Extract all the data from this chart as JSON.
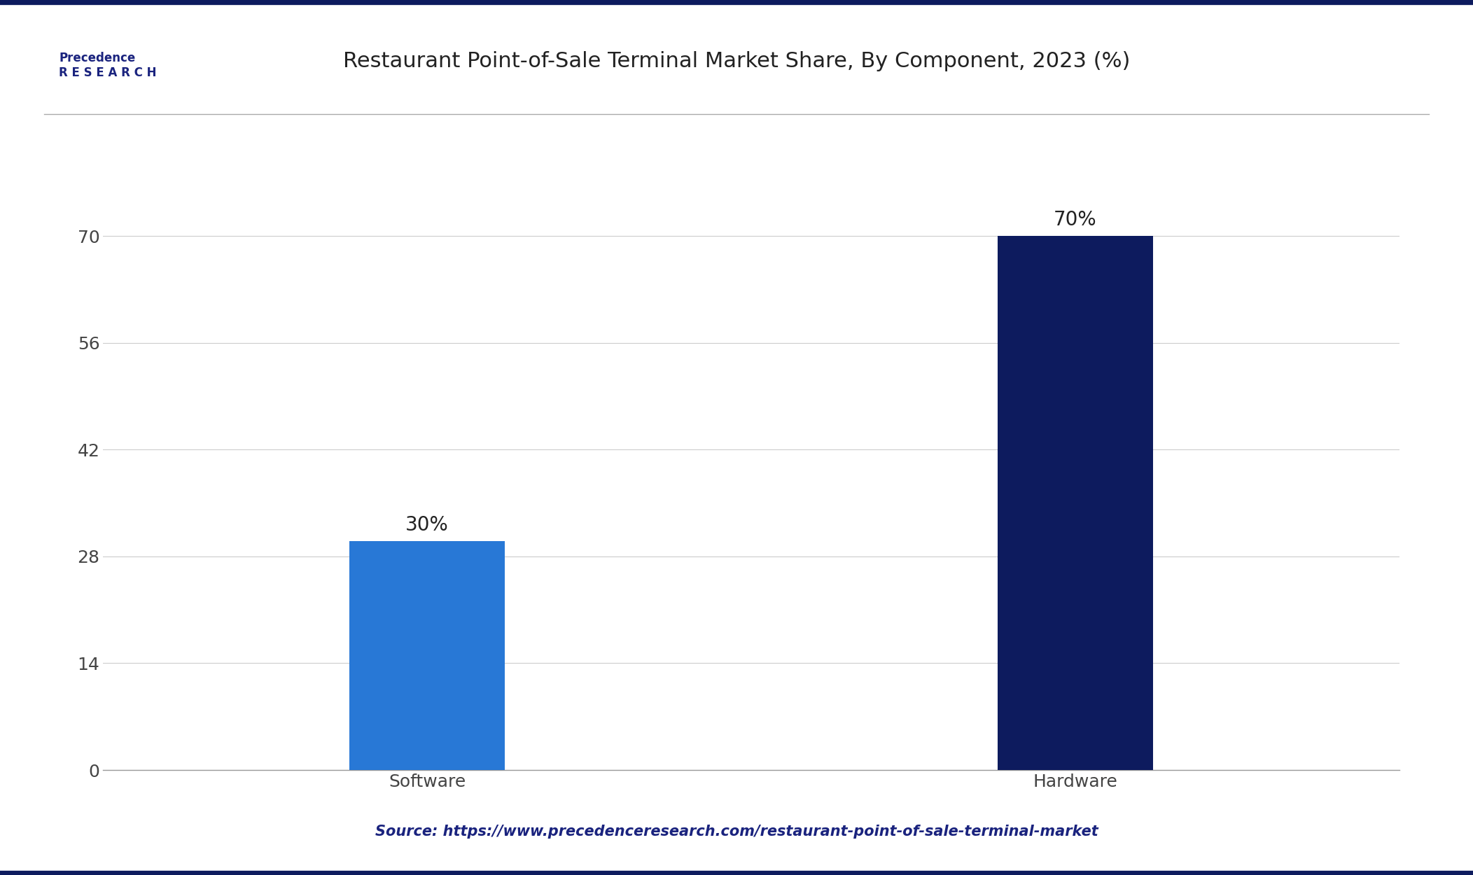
{
  "title": "Restaurant Point-of-Sale Terminal Market Share, By Component, 2023 (%)",
  "categories": [
    "Software",
    "Hardware"
  ],
  "values": [
    30,
    70
  ],
  "bar_colors": [
    "#2878D6",
    "#0D1B5E"
  ],
  "label_texts": [
    "30%",
    "70%"
  ],
  "yticks": [
    0,
    14,
    28,
    42,
    56,
    70
  ],
  "ylim": [
    0,
    78
  ],
  "source_text": "Source: https://www.precedenceresearch.com/restaurant-point-of-sale-terminal-market",
  "background_color": "#FFFFFF",
  "plot_bg_color": "#FFFFFF",
  "title_color": "#222222",
  "label_color": "#222222",
  "tick_color": "#444444",
  "source_color": "#1a237e",
  "grid_color": "#CCCCCC",
  "title_fontsize": 22,
  "label_fontsize": 20,
  "tick_fontsize": 18,
  "source_fontsize": 15,
  "bar_width": 0.12,
  "x_positions": [
    0.25,
    0.75
  ],
  "xlim": [
    0.0,
    1.0
  ],
  "border_color": "#0D1B5E",
  "separator_color": "#AAAAAA",
  "logo_text": "Precedence\nR E S E A R C H",
  "logo_color": "#1a237e",
  "logo_fontsize": 12
}
